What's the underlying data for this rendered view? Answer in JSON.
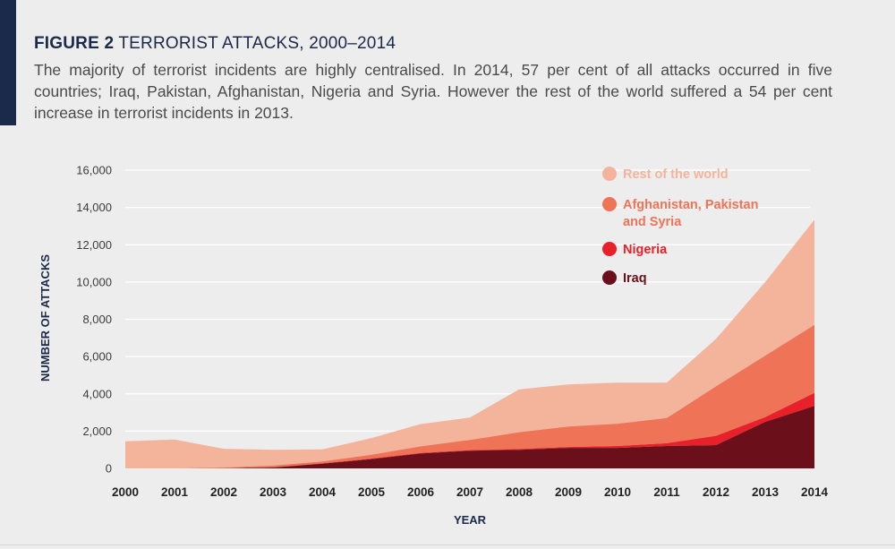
{
  "header": {
    "figure_label": "FIGURE 2",
    "figure_title": "TERRORIST ATTACKS, 2000–2014",
    "description": "The majority of terrorist incidents are highly centralised. In 2014, 57 per cent of all attacks occurred in five countries; Iraq, Pakistan, Afghanistan, Nigeria and Syria. However the rest of the world suffered a 54 per cent increase in terrorist incidents in 2013."
  },
  "colors": {
    "background": "#ecedec",
    "accent": "#1b2a4a",
    "gridline": "#ffffff"
  },
  "chart_data": {
    "type": "area",
    "stacked": true,
    "xlabel": "YEAR",
    "ylabel": "NUMBER OF ATTACKS",
    "ylim": [
      0,
      16000
    ],
    "yticks": [
      0,
      2000,
      4000,
      6000,
      8000,
      10000,
      12000,
      14000,
      16000
    ],
    "ytick_labels": [
      "0",
      "2,000",
      "4,000",
      "6,000",
      "8,000",
      "10,000",
      "12,000",
      "14,000",
      "16,000"
    ],
    "x": [
      "2000",
      "2001",
      "2002",
      "2003",
      "2004",
      "2005",
      "2006",
      "2007",
      "2008",
      "2009",
      "2010",
      "2011",
      "2012",
      "2013",
      "2014"
    ],
    "grid": true,
    "legend_position": "top-right",
    "series": [
      {
        "name": "Iraq",
        "color": "#6b0f1a",
        "values": [
          0,
          0,
          0,
          50,
          250,
          500,
          800,
          950,
          1000,
          1100,
          1100,
          1200,
          1250,
          2500,
          3350
        ]
      },
      {
        "name": "Nigeria",
        "color": "#e8202a",
        "values": [
          0,
          0,
          0,
          0,
          20,
          30,
          30,
          30,
          40,
          50,
          100,
          150,
          500,
          250,
          700
        ]
      },
      {
        "name": "Afghanistan, Pakistan and Syria",
        "color": "#ef7356",
        "values": [
          0,
          0,
          50,
          100,
          100,
          200,
          350,
          550,
          900,
          1100,
          1200,
          1350,
          2650,
          3300,
          3650
        ]
      },
      {
        "name": "Rest of the world",
        "color": "#f4b49b",
        "values": [
          1450,
          1550,
          1000,
          850,
          650,
          900,
          1200,
          1200,
          2300,
          2250,
          2200,
          1900,
          2550,
          3950,
          5650
        ]
      }
    ],
    "legend": [
      {
        "label": "Rest of the world",
        "color": "#f4b49b"
      },
      {
        "label": "Afghanistan, Pakistan and Syria",
        "color": "#ef7356"
      },
      {
        "label": "Nigeria",
        "color": "#e8202a"
      },
      {
        "label": "Iraq",
        "color": "#6b0f1a"
      }
    ]
  }
}
